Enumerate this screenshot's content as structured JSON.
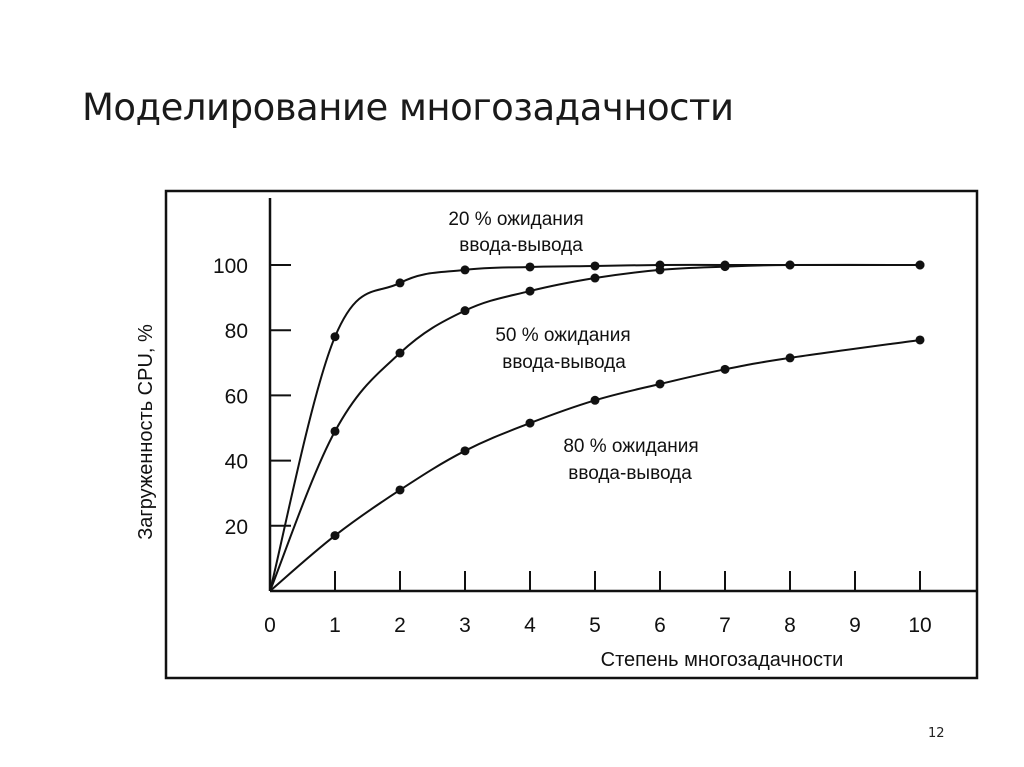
{
  "slide": {
    "title": "Моделирование многозадачности",
    "page_number": "12"
  },
  "chart_data": {
    "type": "line",
    "title": "",
    "xlabel": "Степень многозадачности",
    "ylabel": "Загруженность CPU, %",
    "xlim": [
      0,
      10
    ],
    "ylim": [
      0,
      100
    ],
    "x_ticks": [
      "0",
      "1",
      "2",
      "3",
      "4",
      "5",
      "6",
      "7",
      "8",
      "9",
      "10"
    ],
    "y_ticks": [
      "20",
      "40",
      "60",
      "80",
      "100"
    ],
    "grid": false,
    "legend_position": "inline annotations",
    "series": [
      {
        "name": "20 % ожидания ввода-вывода",
        "label_line1": "20 % ожидания",
        "label_line2": "ввода-вывода",
        "x": [
          0,
          1,
          2,
          3,
          4,
          5,
          6,
          7,
          8,
          10
        ],
        "values": [
          0,
          78,
          94.5,
          98.5,
          99.4,
          99.7,
          100,
          100,
          100,
          100
        ]
      },
      {
        "name": "50 % ожидания ввода-вывода",
        "label_line1": "50 % ожидания",
        "label_line2": "ввода-вывода",
        "x": [
          0,
          1,
          2,
          3,
          4,
          5,
          6,
          7,
          8,
          10
        ],
        "values": [
          0,
          49,
          73,
          86,
          92,
          96,
          98.5,
          99.5,
          100,
          100
        ]
      },
      {
        "name": "80 % ожидания ввода-вывода",
        "label_line1": "80 % ожидания",
        "label_line2": "ввода-вывода",
        "x": [
          0,
          1,
          2,
          3,
          4,
          5,
          6,
          7,
          8,
          10
        ],
        "values": [
          0,
          17,
          31,
          43,
          51.5,
          58.5,
          63.5,
          68,
          71.5,
          77
        ]
      }
    ]
  }
}
